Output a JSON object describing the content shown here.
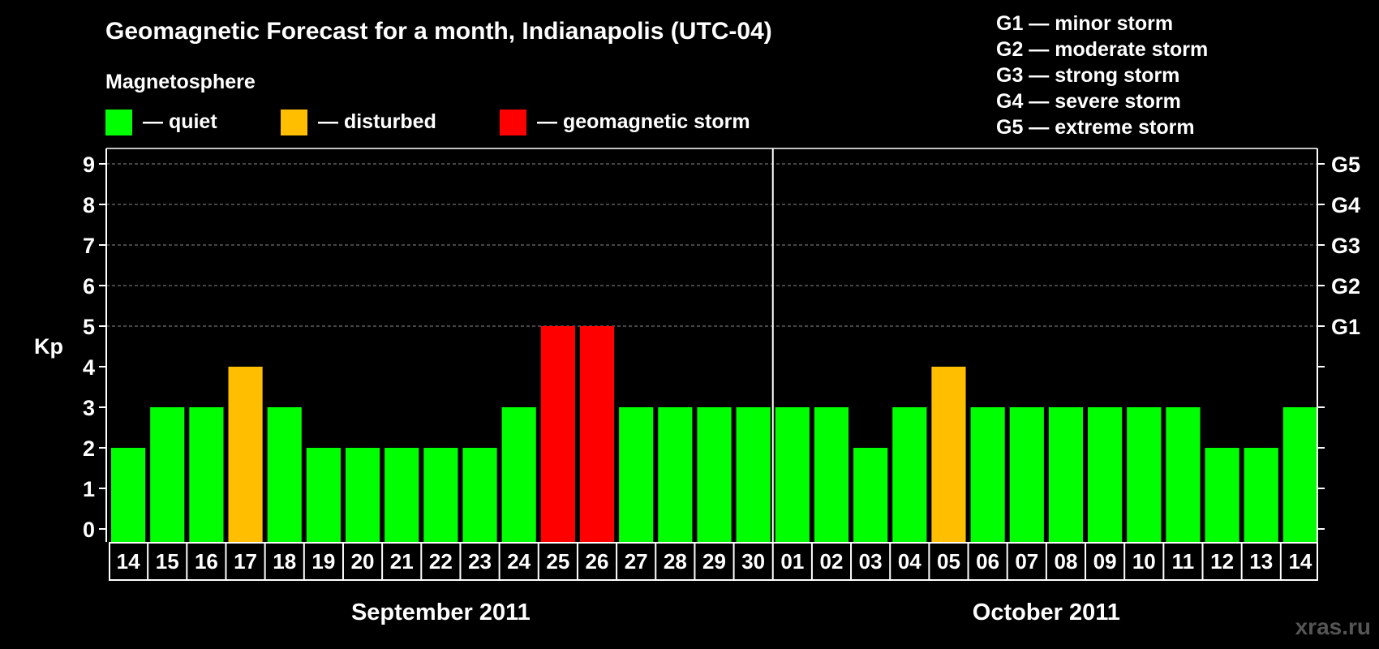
{
  "title": "Geomagnetic Forecast for a month, Indianapolis (UTC-04)",
  "legend": {
    "heading": "Magnetosphere",
    "items": [
      {
        "label": "— quiet",
        "color": "#00ff00"
      },
      {
        "label": "— disturbed",
        "color": "#ffbf00"
      },
      {
        "label": "— geomagnetic storm",
        "color": "#ff0000"
      }
    ]
  },
  "storm_legend": [
    "G1 — minor storm",
    "G2 — moderate storm",
    "G3 — strong storm",
    "G4 — severe storm",
    "G5 — extreme storm"
  ],
  "watermark": "xras.ru",
  "chart_data": {
    "type": "bar",
    "title": "Geomagnetic Forecast for a month, Indianapolis (UTC-04)",
    "ylabel": "Kp",
    "ylim": [
      0,
      9
    ],
    "yticks": [
      "0",
      "1",
      "2",
      "3",
      "4",
      "5",
      "6",
      "7",
      "8",
      "9"
    ],
    "right_ticks": [
      {
        "kp": 5,
        "label": "G1"
      },
      {
        "kp": 6,
        "label": "G2"
      },
      {
        "kp": 7,
        "label": "G3"
      },
      {
        "kp": 8,
        "label": "G4"
      },
      {
        "kp": 9,
        "label": "G5"
      }
    ],
    "categories": [
      "14",
      "15",
      "16",
      "17",
      "18",
      "19",
      "20",
      "21",
      "22",
      "23",
      "24",
      "25",
      "26",
      "27",
      "28",
      "29",
      "30",
      "01",
      "02",
      "03",
      "04",
      "05",
      "06",
      "07",
      "08",
      "09",
      "10",
      "11",
      "12",
      "13",
      "14"
    ],
    "values": [
      2,
      3,
      3,
      4,
      3,
      2,
      2,
      2,
      2,
      2,
      3,
      5,
      5,
      3,
      3,
      3,
      3,
      3,
      3,
      2,
      3,
      4,
      3,
      3,
      3,
      3,
      3,
      3,
      2,
      2,
      3
    ],
    "months": [
      {
        "label": "September 2011",
        "start_index": 0,
        "count": 17
      },
      {
        "label": "October 2011",
        "start_index": 17,
        "count": 14
      }
    ],
    "colors": {
      "quiet": "#00ff00",
      "disturbed": "#ffbf00",
      "storm": "#ff0000"
    },
    "thresholds": {
      "disturbed": 4,
      "storm": 5
    }
  }
}
